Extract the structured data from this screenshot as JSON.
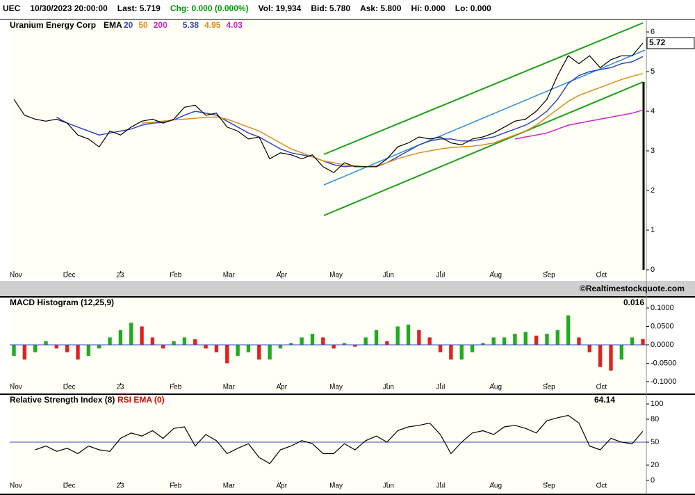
{
  "header": {
    "items": [
      {
        "text": "UEC",
        "color": "#000000"
      },
      {
        "text": "10/30/2023 20:00:00",
        "color": "#000000"
      },
      {
        "text": "Last: 5.719",
        "color": "#000000"
      },
      {
        "text": "Chg: 0.000 (0.000%)",
        "color": "#009900"
      },
      {
        "text": "Vol: 19,934",
        "color": "#000000"
      },
      {
        "text": "Bid: 5.780",
        "color": "#000000"
      },
      {
        "text": "Ask: 5.800",
        "color": "#000000"
      },
      {
        "text": "Hi: 0.000",
        "color": "#000000"
      },
      {
        "text": "Lo: 0.000",
        "color": "#000000"
      }
    ]
  },
  "note": "©Realtimestockquote.com",
  "chart_data": [
    {
      "type": "line",
      "title": "Uranium Energy Corp",
      "indicator": "EMA",
      "categories": [
        "Nov",
        null,
        null,
        null,
        null,
        "Dec",
        null,
        null,
        null,
        null,
        "23",
        null,
        null,
        null,
        null,
        "Feb",
        null,
        null,
        null,
        null,
        "Mar",
        null,
        null,
        null,
        null,
        "Apr",
        null,
        null,
        null,
        null,
        "May",
        null,
        null,
        null,
        null,
        "Jun",
        null,
        null,
        null,
        null,
        "Jul",
        null,
        null,
        null,
        null,
        "Aug",
        null,
        null,
        null,
        null,
        "Sep",
        null,
        null,
        null,
        null,
        "Oct",
        null,
        null,
        null,
        null
      ],
      "values": [
        4.3,
        3.9,
        3.8,
        3.75,
        3.8,
        3.7,
        3.4,
        3.3,
        3.1,
        3.5,
        3.4,
        3.6,
        3.75,
        3.8,
        3.7,
        3.8,
        4.1,
        4.15,
        3.9,
        3.95,
        3.6,
        3.5,
        3.3,
        3.35,
        2.8,
        2.95,
        2.9,
        2.8,
        2.9,
        2.6,
        2.45,
        2.7,
        2.6,
        2.6,
        2.6,
        2.8,
        3.1,
        3.2,
        3.35,
        3.3,
        3.35,
        3.2,
        3.15,
        3.3,
        3.35,
        3.45,
        3.6,
        3.75,
        3.8,
        4.0,
        4.3,
        4.9,
        5.4,
        5.2,
        5.4,
        5.1,
        5.3,
        5.4,
        5.4,
        5.72
      ],
      "color": "#000000",
      "series": [
        {
          "name": "20",
          "color": "#3344bb",
          "values": [
            null,
            null,
            null,
            null,
            3.85,
            3.7,
            3.6,
            3.5,
            3.4,
            3.45,
            3.5,
            3.55,
            3.65,
            3.7,
            3.72,
            3.78,
            3.9,
            4.0,
            3.95,
            3.9,
            3.75,
            3.6,
            3.45,
            3.35,
            3.2,
            3.05,
            2.95,
            2.9,
            2.85,
            2.75,
            2.65,
            2.6,
            2.62,
            2.6,
            2.6,
            2.7,
            2.85,
            3.0,
            3.15,
            3.25,
            3.3,
            3.3,
            3.25,
            3.25,
            3.3,
            3.35,
            3.45,
            3.55,
            3.65,
            3.8,
            4.0,
            4.3,
            4.7,
            4.9,
            5.0,
            5.05,
            5.1,
            5.2,
            5.25,
            5.38
          ]
        },
        {
          "name": "50",
          "color": "#e08a1e",
          "values": [
            null,
            null,
            null,
            null,
            null,
            null,
            null,
            null,
            null,
            null,
            null,
            null,
            3.7,
            3.72,
            3.75,
            3.78,
            3.8,
            3.82,
            3.85,
            3.85,
            3.8,
            3.7,
            3.6,
            3.5,
            3.35,
            3.2,
            3.05,
            2.95,
            2.85,
            2.75,
            2.7,
            2.65,
            2.6,
            2.6,
            2.62,
            2.7,
            2.8,
            2.88,
            2.95,
            3.0,
            3.05,
            3.08,
            3.1,
            3.12,
            3.15,
            3.2,
            3.3,
            3.4,
            3.5,
            3.65,
            3.85,
            4.05,
            4.25,
            4.4,
            4.5,
            4.6,
            4.7,
            4.8,
            4.88,
            4.95
          ]
        },
        {
          "name": "200",
          "color": "#cc22cc",
          "values": [
            null,
            null,
            null,
            null,
            null,
            null,
            null,
            null,
            null,
            null,
            null,
            null,
            null,
            null,
            null,
            null,
            null,
            null,
            null,
            null,
            null,
            null,
            null,
            null,
            null,
            null,
            null,
            null,
            null,
            null,
            null,
            null,
            null,
            null,
            null,
            null,
            null,
            null,
            null,
            null,
            null,
            null,
            null,
            null,
            null,
            null,
            null,
            3.3,
            3.35,
            3.4,
            3.45,
            3.55,
            3.65,
            3.7,
            3.75,
            3.8,
            3.85,
            3.9,
            3.95,
            4.03
          ]
        }
      ],
      "ylim": [
        0,
        6
      ],
      "yticks": [
        0,
        1,
        2,
        3,
        4,
        5,
        6
      ]
    },
    {
      "type": "bar",
      "title": "MACD Histogram (12,25,9)",
      "categories": [
        "Nov",
        null,
        null,
        null,
        null,
        "Dec",
        null,
        null,
        null,
        null,
        "23",
        null,
        null,
        null,
        null,
        "Feb",
        null,
        null,
        null,
        null,
        "Mar",
        null,
        null,
        null,
        null,
        "Apr",
        null,
        null,
        null,
        null,
        "May",
        null,
        null,
        null,
        null,
        "Jun",
        null,
        null,
        null,
        null,
        "Jul",
        null,
        null,
        null,
        null,
        "Aug",
        null,
        null,
        null,
        null,
        "Sep",
        null,
        null,
        null,
        null,
        "Oct",
        null,
        null,
        null,
        null
      ],
      "values": [
        -0.03,
        -0.04,
        -0.02,
        0.01,
        -0.01,
        -0.02,
        -0.04,
        -0.03,
        -0.01,
        0.02,
        0.04,
        0.06,
        0.05,
        0.02,
        -0.01,
        0.01,
        0.02,
        0.015,
        -0.01,
        -0.02,
        -0.05,
        -0.03,
        -0.02,
        -0.04,
        -0.04,
        -0.01,
        0.005,
        0.02,
        0.03,
        0.02,
        -0.01,
        0.005,
        -0.005,
        0.02,
        0.04,
        0.01,
        0.05,
        0.055,
        0.04,
        0.02,
        -0.02,
        -0.04,
        -0.04,
        -0.02,
        0.005,
        0.02,
        0.02,
        0.03,
        0.035,
        0.025,
        0.03,
        0.04,
        0.08,
        0.02,
        -0.02,
        -0.06,
        -0.07,
        -0.04,
        0.02,
        0.016
      ],
      "up_color": "#22aa22",
      "down_color": "#dd2222",
      "ylim": [
        -0.1,
        0.1
      ],
      "yticks": [
        {
          "value": 0.1,
          "label": "0.1000"
        },
        {
          "value": 0.05,
          "label": "0.0500"
        },
        {
          "value": 0,
          "label": "0.0000"
        },
        {
          "value": -0.05,
          "label": "-0.0500"
        },
        {
          "value": -0.1,
          "label": "-0.1000"
        }
      ]
    },
    {
      "type": "line",
      "title": "Relative Strength Index (8)",
      "rsi_ema_label": "RSI EMA (0)",
      "categories": [
        "Nov",
        null,
        null,
        null,
        null,
        "Dec",
        null,
        null,
        null,
        null,
        "23",
        null,
        null,
        null,
        null,
        "Feb",
        null,
        null,
        null,
        null,
        "Mar",
        null,
        null,
        null,
        null,
        "Apr",
        null,
        null,
        null,
        null,
        "May",
        null,
        null,
        null,
        null,
        "Jun",
        null,
        null,
        null,
        null,
        "Jul",
        null,
        null,
        null,
        null,
        "Aug",
        null,
        null,
        null,
        null,
        "Sep",
        null,
        null,
        null,
        null,
        "Oct",
        null,
        null,
        null,
        null
      ],
      "values": [
        null,
        null,
        40,
        45,
        38,
        42,
        35,
        45,
        40,
        38,
        55,
        62,
        58,
        65,
        55,
        68,
        70,
        45,
        60,
        52,
        35,
        42,
        48,
        30,
        22,
        40,
        45,
        52,
        48,
        35,
        35,
        48,
        40,
        52,
        58,
        50,
        65,
        70,
        72,
        75,
        60,
        35,
        50,
        62,
        65,
        60,
        70,
        72,
        68,
        62,
        78,
        82,
        85,
        75,
        45,
        40,
        55,
        50,
        48,
        64.14
      ],
      "color": "#000000",
      "reference": 50,
      "reference_color": "#3344bb",
      "ylim": [
        0,
        100
      ],
      "yticks": [
        0,
        20,
        50,
        80,
        100
      ]
    }
  ]
}
